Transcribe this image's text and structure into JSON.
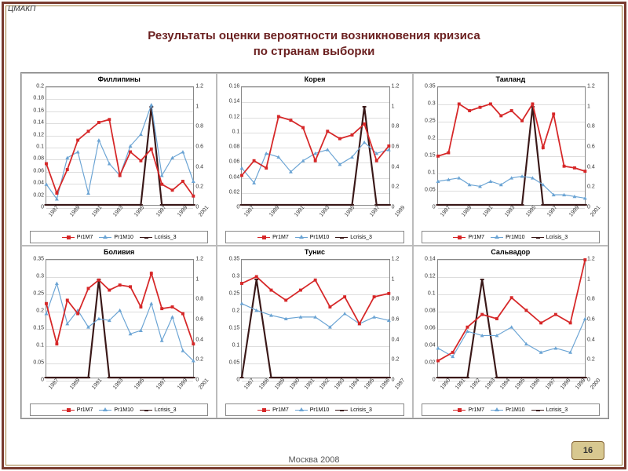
{
  "brand": "ЦМАКП",
  "title_line1": "Результаты оценки вероятности возникновения кризиса",
  "title_line2": "по странам выборки",
  "footer": "Москва 2008",
  "page_number": "16",
  "colors": {
    "series_red": "#d62728",
    "series_blue": "#6ba4d4",
    "series_dark": "#3a1818",
    "grid": "#dddddd",
    "border": "#888888"
  },
  "legend_labels": {
    "s1": "Pr1M7",
    "s2": "Pr1M10",
    "s3": "Lcrisis_3"
  },
  "charts": [
    {
      "title": "Филлипины",
      "years": [
        "1987",
        "1989",
        "1991",
        "1993",
        "1995",
        "1997",
        "1999",
        "2001"
      ],
      "y_left": {
        "min": 0,
        "max": 0.2,
        "step": 0.02
      },
      "y_right": {
        "min": 0,
        "max": 1.2,
        "step": 0.2
      },
      "s1": [
        0.07,
        0.02,
        0.06,
        0.11,
        0.125,
        0.14,
        0.145,
        0.05,
        0.09,
        0.075,
        0.095,
        0.035,
        0.025,
        0.04,
        0.015
      ],
      "s2": [
        0.035,
        0.01,
        0.08,
        0.09,
        0.02,
        0.11,
        0.07,
        0.05,
        0.1,
        0.12,
        0.17,
        0.05,
        0.08,
        0.09,
        0.04
      ],
      "s3": [
        0,
        0,
        0,
        0,
        0,
        0,
        0,
        0,
        0,
        0,
        1,
        0,
        0,
        0,
        0
      ]
    },
    {
      "title": "Корея",
      "years": [
        "1987",
        "1989",
        "1991",
        "1993",
        "1995",
        "1997",
        "1999"
      ],
      "y_left": {
        "min": 0,
        "max": 0.16,
        "step": 0.02
      },
      "y_right": {
        "min": 0,
        "max": 1.2,
        "step": 0.2
      },
      "s1": [
        0.04,
        0.06,
        0.05,
        0.12,
        0.115,
        0.105,
        0.06,
        0.1,
        0.09,
        0.095,
        0.11,
        0.06,
        0.08
      ],
      "s2": [
        0.05,
        0.03,
        0.07,
        0.065,
        0.045,
        0.06,
        0.07,
        0.075,
        0.055,
        0.065,
        0.085,
        0.07,
        0.075
      ],
      "s3": [
        0,
        0,
        0,
        0,
        0,
        0,
        0,
        0,
        0,
        0,
        1,
        0,
        0
      ]
    },
    {
      "title": "Таиланд",
      "years": [
        "1987",
        "1989",
        "1991",
        "1993",
        "1995",
        "1997",
        "1999",
        "2001"
      ],
      "y_left": {
        "min": 0,
        "max": 0.35,
        "step": 0.05
      },
      "y_right": {
        "min": 0,
        "max": 1.2,
        "step": 0.2
      },
      "s1": [
        0.145,
        0.155,
        0.3,
        0.28,
        0.29,
        0.3,
        0.265,
        0.28,
        0.25,
        0.3,
        0.17,
        0.27,
        0.115,
        0.11,
        0.1
      ],
      "s2": [
        0.07,
        0.075,
        0.08,
        0.06,
        0.055,
        0.07,
        0.06,
        0.08,
        0.085,
        0.08,
        0.06,
        0.03,
        0.03,
        0.025,
        0.02
      ],
      "s3": [
        0,
        0,
        0,
        0,
        0,
        0,
        0,
        0,
        0,
        1,
        0,
        0,
        0,
        0,
        0
      ]
    },
    {
      "title": "Боливия",
      "years": [
        "1987",
        "1989",
        "1991",
        "1993",
        "1995",
        "1997",
        "1999",
        "2001"
      ],
      "y_left": {
        "min": 0,
        "max": 0.35,
        "step": 0.05
      },
      "y_right": {
        "min": 0,
        "max": 1.2,
        "step": 0.2
      },
      "s1": [
        0.22,
        0.1,
        0.23,
        0.19,
        0.265,
        0.29,
        0.26,
        0.275,
        0.27,
        0.21,
        0.31,
        0.205,
        0.21,
        0.19,
        0.1
      ],
      "s2": [
        0.19,
        0.28,
        0.16,
        0.2,
        0.15,
        0.175,
        0.17,
        0.2,
        0.13,
        0.14,
        0.22,
        0.11,
        0.18,
        0.08,
        0.05
      ],
      "s3": [
        0,
        0,
        0,
        0,
        0,
        1,
        0,
        0,
        0,
        0,
        0,
        0,
        0,
        0,
        0
      ]
    },
    {
      "title": "Тунис",
      "years": [
        "1987",
        "1988",
        "1989",
        "1990",
        "1991",
        "1992",
        "1993",
        "1994",
        "1995",
        "1996",
        "1997"
      ],
      "y_left": {
        "min": 0,
        "max": 0.35,
        "step": 0.05
      },
      "y_right": {
        "min": 0,
        "max": 1.2,
        "step": 0.2
      },
      "s1": [
        0.28,
        0.3,
        0.26,
        0.23,
        0.26,
        0.29,
        0.21,
        0.24,
        0.16,
        0.24,
        0.25
      ],
      "s2": [
        0.22,
        0.2,
        0.185,
        0.175,
        0.18,
        0.18,
        0.15,
        0.19,
        0.16,
        0.18,
        0.17
      ],
      "s3": [
        0,
        1,
        0,
        0,
        0,
        0,
        0,
        0,
        0,
        0,
        0
      ]
    },
    {
      "title": "Сальвадор",
      "years": [
        "1990",
        "1991",
        "1992",
        "1993",
        "1994",
        "1995",
        "1996",
        "1997",
        "1998",
        "1999",
        "2000"
      ],
      "y_left": {
        "min": 0,
        "max": 0.14,
        "step": 0.02
      },
      "y_right": {
        "min": 0,
        "max": 1.2,
        "step": 0.2
      },
      "s1": [
        0.02,
        0.03,
        0.06,
        0.075,
        0.07,
        0.095,
        0.08,
        0.065,
        0.075,
        0.065,
        0.14
      ],
      "s2": [
        0.035,
        0.025,
        0.055,
        0.05,
        0.05,
        0.06,
        0.04,
        0.03,
        0.035,
        0.03,
        0.07
      ],
      "s3": [
        0,
        0,
        0,
        1,
        0,
        0,
        0,
        0,
        0,
        0,
        0
      ]
    }
  ]
}
